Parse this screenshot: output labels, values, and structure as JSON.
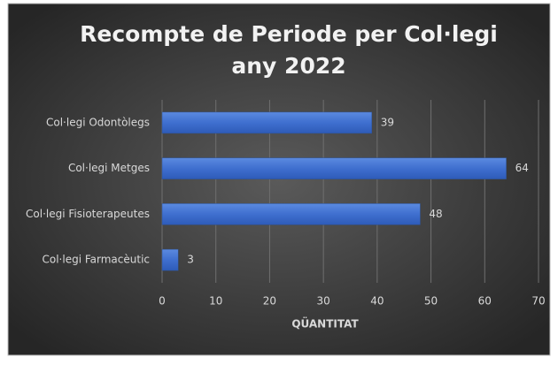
{
  "chart_data": {
    "type": "bar",
    "orientation": "horizontal",
    "title": [
      "Recompte de Periode per Col·legi",
      "any 2022"
    ],
    "x_label": "QÜANTITAT",
    "categories": [
      "Col·legi Odontòlegs",
      "Col·legi Metges",
      "Col·legi Fisioterapeutes",
      "Col·legi Farmacèutic"
    ],
    "values": [
      39,
      64,
      48,
      3
    ],
    "color": "#4472c4",
    "xlim": [
      0,
      70
    ],
    "xticks": [
      0,
      10,
      20,
      30,
      40,
      50,
      60,
      70
    ],
    "grid": true
  }
}
